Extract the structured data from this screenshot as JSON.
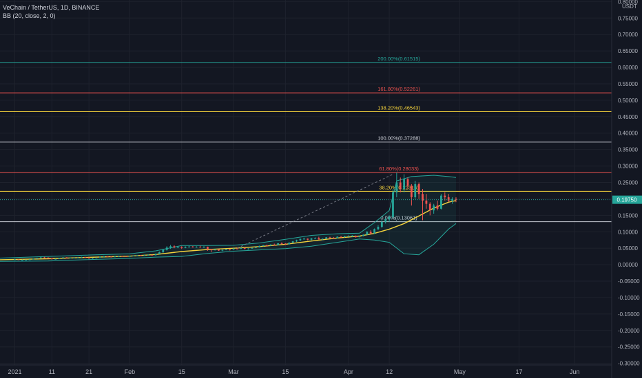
{
  "legend": {
    "symbol": "VeChain / TetherUS, 1D, BINANCE",
    "indicator": "BB (20, close, 2, 0)"
  },
  "colors": {
    "background": "#131722",
    "grid": "#1e222d",
    "up": "#26a69a",
    "down": "#ef5350",
    "basis": "#f5d33c",
    "band": "#26a69a"
  },
  "chart_data": {
    "type": "line",
    "axis_unit": "USDT",
    "ylim": [
      -0.305,
      0.805
    ],
    "y_ticks": [
      0.8,
      0.75,
      0.7,
      0.65,
      0.6,
      0.55,
      0.5,
      0.45,
      0.4,
      0.35,
      0.3,
      0.25,
      0.2,
      0.15,
      0.1,
      0.05,
      0.0,
      -0.05,
      -0.1,
      -0.15,
      -0.2,
      -0.25,
      -0.3
    ],
    "y_tick_labels": [
      "0.80000",
      "0.75000",
      "0.70000",
      "0.65000",
      "0.60000",
      "0.55000",
      "0.50000",
      "0.45000",
      "0.40000",
      "0.35000",
      "0.30000",
      "0.25000",
      "0.20000",
      "0.15000",
      "0.10000",
      "0.05000",
      "0.00000",
      "-0.05000",
      "-0.10000",
      "-0.15000",
      "-0.20000",
      "-0.25000",
      "-0.30000"
    ],
    "x_labels": [
      {
        "date": "2021-01-01",
        "label": "2021"
      },
      {
        "date": "2021-01-11",
        "label": "11"
      },
      {
        "date": "2021-01-21",
        "label": "21"
      },
      {
        "date": "2021-02-01",
        "label": "Feb"
      },
      {
        "date": "2021-02-15",
        "label": "15"
      },
      {
        "date": "2021-03-01",
        "label": "Mar"
      },
      {
        "date": "2021-03-15",
        "label": "15"
      },
      {
        "date": "2021-04-01",
        "label": "Apr"
      },
      {
        "date": "2021-04-12",
        "label": "12"
      },
      {
        "date": "2021-05-01",
        "label": "May"
      },
      {
        "date": "2021-05-17",
        "label": "17"
      },
      {
        "date": "2021-06-01",
        "label": "Jun"
      }
    ],
    "fib_levels": [
      {
        "level": "200.00%",
        "value": 0.61515,
        "label": "200.00%(0.61515)",
        "color": "#26a69a"
      },
      {
        "level": "161.80%",
        "value": 0.52261,
        "label": "161.80%(0.52261)",
        "color": "#ef5350"
      },
      {
        "level": "138.20%",
        "value": 0.46543,
        "label": "138.20%(0.46543)",
        "color": "#f5d33c"
      },
      {
        "level": "100.00%",
        "value": 0.37288,
        "label": "100.00%(0.37288)",
        "color": "#d1d4dc"
      },
      {
        "level": "61.80%",
        "value": 0.28033,
        "label": "61.80%(0.28033)",
        "color": "#ef5350"
      },
      {
        "level": "38.20%",
        "value": 0.22316,
        "label": "38.20%(0.22316)",
        "color": "#f5d33c"
      },
      {
        "level": "0.00%",
        "value": 0.13061,
        "label": "0.00%(0.13061)",
        "color": "#d1d4dc"
      }
    ],
    "trend_line": {
      "start": [
        "2021-03-02",
        0.05
      ],
      "end": [
        "2021-04-13",
        0.275
      ]
    },
    "last_price": {
      "value": 0.1975,
      "label": "0.19750"
    },
    "series": [
      {
        "name": "basis",
        "points": [
          [
            "2020-12-28",
            0.015
          ],
          [
            "2021-01-10",
            0.018
          ],
          [
            "2021-01-20",
            0.022
          ],
          [
            "2021-02-01",
            0.026
          ],
          [
            "2021-02-08",
            0.031
          ],
          [
            "2021-02-15",
            0.04
          ],
          [
            "2021-02-22",
            0.046
          ],
          [
            "2021-03-01",
            0.05
          ],
          [
            "2021-03-08",
            0.055
          ],
          [
            "2021-03-15",
            0.062
          ],
          [
            "2021-03-22",
            0.072
          ],
          [
            "2021-03-29",
            0.081
          ],
          [
            "2021-04-04",
            0.087
          ],
          [
            "2021-04-08",
            0.095
          ],
          [
            "2021-04-12",
            0.108
          ],
          [
            "2021-04-16",
            0.125
          ],
          [
            "2021-04-20",
            0.148
          ],
          [
            "2021-04-24",
            0.172
          ],
          [
            "2021-04-28",
            0.19
          ],
          [
            "2021-04-30",
            0.195
          ]
        ]
      },
      {
        "name": "upper",
        "points": [
          [
            "2020-12-28",
            0.02
          ],
          [
            "2021-01-10",
            0.025
          ],
          [
            "2021-01-20",
            0.029
          ],
          [
            "2021-02-01",
            0.033
          ],
          [
            "2021-02-08",
            0.042
          ],
          [
            "2021-02-15",
            0.058
          ],
          [
            "2021-02-22",
            0.058
          ],
          [
            "2021-03-01",
            0.059
          ],
          [
            "2021-03-08",
            0.066
          ],
          [
            "2021-03-15",
            0.077
          ],
          [
            "2021-03-22",
            0.089
          ],
          [
            "2021-03-29",
            0.094
          ],
          [
            "2021-04-04",
            0.096
          ],
          [
            "2021-04-08",
            0.128
          ],
          [
            "2021-04-12",
            0.165
          ],
          [
            "2021-04-14",
            0.255
          ],
          [
            "2021-04-18",
            0.268
          ],
          [
            "2021-04-24",
            0.272
          ],
          [
            "2021-04-28",
            0.268
          ],
          [
            "2021-04-30",
            0.265
          ]
        ]
      },
      {
        "name": "lower",
        "points": [
          [
            "2020-12-28",
            0.01
          ],
          [
            "2021-01-10",
            0.011
          ],
          [
            "2021-01-20",
            0.015
          ],
          [
            "2021-02-01",
            0.019
          ],
          [
            "2021-02-08",
            0.023
          ],
          [
            "2021-02-15",
            0.025
          ],
          [
            "2021-02-22",
            0.034
          ],
          [
            "2021-03-01",
            0.041
          ],
          [
            "2021-03-08",
            0.045
          ],
          [
            "2021-03-15",
            0.049
          ],
          [
            "2021-03-22",
            0.056
          ],
          [
            "2021-03-29",
            0.068
          ],
          [
            "2021-04-04",
            0.078
          ],
          [
            "2021-04-08",
            0.075
          ],
          [
            "2021-04-12",
            0.068
          ],
          [
            "2021-04-16",
            0.033
          ],
          [
            "2021-04-20",
            0.03
          ],
          [
            "2021-04-24",
            0.062
          ],
          [
            "2021-04-28",
            0.108
          ],
          [
            "2021-04-30",
            0.125
          ]
        ]
      }
    ],
    "candles": [
      [
        "2021-01-01",
        0.016,
        0.0175,
        0.014,
        0.016
      ],
      [
        "2021-01-02",
        0.016,
        0.016,
        0.014,
        0.0145
      ],
      [
        "2021-01-03",
        0.0145,
        0.016,
        0.013,
        0.0145
      ],
      [
        "2021-01-04",
        0.0145,
        0.016,
        0.014,
        0.015
      ],
      [
        "2021-01-05",
        0.015,
        0.0165,
        0.0145,
        0.016
      ],
      [
        "2021-01-06",
        0.016,
        0.0185,
        0.0155,
        0.018
      ],
      [
        "2021-01-07",
        0.018,
        0.021,
        0.0175,
        0.02
      ],
      [
        "2021-01-08",
        0.02,
        0.0235,
        0.018,
        0.022
      ],
      [
        "2021-01-09",
        0.022,
        0.024,
        0.02,
        0.0215
      ],
      [
        "2021-01-10",
        0.0215,
        0.0225,
        0.018,
        0.019
      ],
      [
        "2021-01-11",
        0.019,
        0.0195,
        0.015,
        0.017
      ],
      [
        "2021-01-12",
        0.017,
        0.0185,
        0.016,
        0.0175
      ],
      [
        "2021-01-13",
        0.0175,
        0.0205,
        0.017,
        0.02
      ],
      [
        "2021-01-14",
        0.02,
        0.023,
        0.0195,
        0.022
      ],
      [
        "2021-01-15",
        0.022,
        0.023,
        0.019,
        0.02
      ],
      [
        "2021-01-16",
        0.02,
        0.0215,
        0.0195,
        0.021
      ],
      [
        "2021-01-17",
        0.021,
        0.022,
        0.02,
        0.021
      ],
      [
        "2021-01-18",
        0.021,
        0.0225,
        0.02,
        0.0215
      ],
      [
        "2021-01-19",
        0.0215,
        0.024,
        0.021,
        0.023
      ],
      [
        "2021-01-20",
        0.023,
        0.0235,
        0.02,
        0.022
      ],
      [
        "2021-01-21",
        0.022,
        0.0225,
        0.018,
        0.019
      ],
      [
        "2021-01-22",
        0.019,
        0.0215,
        0.0175,
        0.021
      ],
      [
        "2021-01-23",
        0.021,
        0.0225,
        0.0205,
        0.0215
      ],
      [
        "2021-01-24",
        0.0215,
        0.0245,
        0.021,
        0.024
      ],
      [
        "2021-01-25",
        0.024,
        0.0265,
        0.023,
        0.025
      ],
      [
        "2021-01-26",
        0.025,
        0.026,
        0.0235,
        0.0245
      ],
      [
        "2021-01-27",
        0.0245,
        0.025,
        0.022,
        0.023
      ],
      [
        "2021-01-28",
        0.023,
        0.0255,
        0.0225,
        0.025
      ],
      [
        "2021-01-29",
        0.025,
        0.0275,
        0.024,
        0.026
      ],
      [
        "2021-01-30",
        0.026,
        0.027,
        0.0245,
        0.0255
      ],
      [
        "2021-01-31",
        0.0255,
        0.026,
        0.024,
        0.0245
      ],
      [
        "2021-02-01",
        0.0245,
        0.0265,
        0.024,
        0.026
      ],
      [
        "2021-02-02",
        0.026,
        0.028,
        0.0255,
        0.0275
      ],
      [
        "2021-02-03",
        0.0275,
        0.029,
        0.0265,
        0.0285
      ],
      [
        "2021-02-04",
        0.0285,
        0.0295,
        0.0265,
        0.0275
      ],
      [
        "2021-02-05",
        0.0275,
        0.03,
        0.027,
        0.029
      ],
      [
        "2021-02-06",
        0.029,
        0.031,
        0.028,
        0.03
      ],
      [
        "2021-02-07",
        0.03,
        0.0305,
        0.027,
        0.0285
      ],
      [
        "2021-02-08",
        0.0285,
        0.034,
        0.028,
        0.033
      ],
      [
        "2021-02-09",
        0.033,
        0.04,
        0.032,
        0.038
      ],
      [
        "2021-02-10",
        0.038,
        0.048,
        0.036,
        0.045
      ],
      [
        "2021-02-11",
        0.045,
        0.056,
        0.043,
        0.052
      ],
      [
        "2021-02-12",
        0.052,
        0.06,
        0.048,
        0.056
      ],
      [
        "2021-02-13",
        0.056,
        0.059,
        0.05,
        0.053
      ],
      [
        "2021-02-14",
        0.053,
        0.057,
        0.05,
        0.054
      ],
      [
        "2021-02-15",
        0.054,
        0.056,
        0.048,
        0.051
      ],
      [
        "2021-02-16",
        0.051,
        0.056,
        0.05,
        0.054
      ],
      [
        "2021-02-17",
        0.054,
        0.057,
        0.052,
        0.055
      ],
      [
        "2021-02-18",
        0.055,
        0.0565,
        0.052,
        0.053
      ],
      [
        "2021-02-19",
        0.053,
        0.056,
        0.0515,
        0.0545
      ],
      [
        "2021-02-20",
        0.0545,
        0.0575,
        0.052,
        0.053
      ],
      [
        "2021-02-21",
        0.053,
        0.056,
        0.051,
        0.0545
      ],
      [
        "2021-02-22",
        0.0545,
        0.055,
        0.042,
        0.047
      ],
      [
        "2021-02-23",
        0.047,
        0.048,
        0.038,
        0.044
      ],
      [
        "2021-02-24",
        0.044,
        0.048,
        0.043,
        0.046
      ],
      [
        "2021-02-25",
        0.046,
        0.0475,
        0.042,
        0.043
      ],
      [
        "2021-02-26",
        0.043,
        0.046,
        0.041,
        0.045
      ],
      [
        "2021-02-27",
        0.045,
        0.048,
        0.044,
        0.047
      ],
      [
        "2021-02-28",
        0.047,
        0.048,
        0.043,
        0.046
      ],
      [
        "2021-03-01",
        0.046,
        0.05,
        0.045,
        0.049
      ],
      [
        "2021-03-02",
        0.049,
        0.051,
        0.047,
        0.048
      ],
      [
        "2021-03-03",
        0.048,
        0.052,
        0.0475,
        0.051
      ],
      [
        "2021-03-04",
        0.051,
        0.052,
        0.047,
        0.048
      ],
      [
        "2021-03-05",
        0.048,
        0.05,
        0.046,
        0.049
      ],
      [
        "2021-03-06",
        0.049,
        0.052,
        0.0485,
        0.051
      ],
      [
        "2021-03-07",
        0.051,
        0.054,
        0.05,
        0.053
      ],
      [
        "2021-03-08",
        0.053,
        0.058,
        0.052,
        0.057
      ],
      [
        "2021-03-09",
        0.057,
        0.06,
        0.055,
        0.059
      ],
      [
        "2021-03-10",
        0.059,
        0.061,
        0.056,
        0.058
      ],
      [
        "2021-03-11",
        0.058,
        0.062,
        0.057,
        0.061
      ],
      [
        "2021-03-12",
        0.061,
        0.064,
        0.058,
        0.06
      ],
      [
        "2021-03-13",
        0.06,
        0.066,
        0.059,
        0.065
      ],
      [
        "2021-03-14",
        0.065,
        0.068,
        0.062,
        0.064
      ],
      [
        "2021-03-15",
        0.064,
        0.065,
        0.06,
        0.062
      ],
      [
        "2021-03-16",
        0.062,
        0.068,
        0.061,
        0.067
      ],
      [
        "2021-03-17",
        0.067,
        0.072,
        0.066,
        0.071
      ],
      [
        "2021-03-18",
        0.071,
        0.076,
        0.069,
        0.074
      ],
      [
        "2021-03-19",
        0.074,
        0.08,
        0.072,
        0.078
      ],
      [
        "2021-03-20",
        0.078,
        0.082,
        0.076,
        0.079
      ],
      [
        "2021-03-21",
        0.079,
        0.08,
        0.074,
        0.076
      ],
      [
        "2021-03-22",
        0.076,
        0.081,
        0.074,
        0.08
      ],
      [
        "2021-03-23",
        0.08,
        0.083,
        0.078,
        0.081
      ],
      [
        "2021-03-24",
        0.081,
        0.085,
        0.076,
        0.077
      ],
      [
        "2021-03-25",
        0.077,
        0.08,
        0.074,
        0.079
      ],
      [
        "2021-03-26",
        0.079,
        0.084,
        0.078,
        0.083
      ],
      [
        "2021-03-27",
        0.083,
        0.085,
        0.08,
        0.082
      ],
      [
        "2021-03-28",
        0.082,
        0.084,
        0.079,
        0.081
      ],
      [
        "2021-03-29",
        0.081,
        0.086,
        0.08,
        0.085
      ],
      [
        "2021-03-30",
        0.085,
        0.087,
        0.082,
        0.084
      ],
      [
        "2021-03-31",
        0.084,
        0.088,
        0.082,
        0.086
      ],
      [
        "2021-04-01",
        0.086,
        0.089,
        0.084,
        0.087
      ],
      [
        "2021-04-02",
        0.087,
        0.09,
        0.084,
        0.088
      ],
      [
        "2021-04-03",
        0.088,
        0.089,
        0.082,
        0.084
      ],
      [
        "2021-04-04",
        0.084,
        0.088,
        0.083,
        0.087
      ],
      [
        "2021-04-05",
        0.087,
        0.092,
        0.086,
        0.091
      ],
      [
        "2021-04-06",
        0.091,
        0.102,
        0.09,
        0.1
      ],
      [
        "2021-04-07",
        0.1,
        0.105,
        0.092,
        0.095
      ],
      [
        "2021-04-08",
        0.095,
        0.11,
        0.094,
        0.108
      ],
      [
        "2021-04-09",
        0.108,
        0.12,
        0.105,
        0.115
      ],
      [
        "2021-04-10",
        0.115,
        0.135,
        0.112,
        0.13
      ],
      [
        "2021-04-11",
        0.13,
        0.142,
        0.125,
        0.138
      ],
      [
        "2021-04-12",
        0.138,
        0.15,
        0.13,
        0.145
      ],
      [
        "2021-04-13",
        0.145,
        0.23,
        0.14,
        0.22
      ],
      [
        "2021-04-14",
        0.22,
        0.28,
        0.205,
        0.25
      ],
      [
        "2021-04-15",
        0.25,
        0.265,
        0.22,
        0.23
      ],
      [
        "2021-04-16",
        0.23,
        0.275,
        0.22,
        0.26
      ],
      [
        "2021-04-17",
        0.26,
        0.265,
        0.23,
        0.24
      ],
      [
        "2021-04-18",
        0.24,
        0.245,
        0.18,
        0.205
      ],
      [
        "2021-04-19",
        0.205,
        0.255,
        0.2,
        0.245
      ],
      [
        "2021-04-20",
        0.245,
        0.25,
        0.2,
        0.215
      ],
      [
        "2021-04-21",
        0.215,
        0.23,
        0.135,
        0.195
      ],
      [
        "2021-04-22",
        0.195,
        0.215,
        0.17,
        0.185
      ],
      [
        "2021-04-23",
        0.185,
        0.19,
        0.15,
        0.165
      ],
      [
        "2021-04-24",
        0.165,
        0.185,
        0.155,
        0.18
      ],
      [
        "2021-04-25",
        0.18,
        0.195,
        0.165,
        0.17
      ],
      [
        "2021-04-26",
        0.17,
        0.215,
        0.168,
        0.21
      ],
      [
        "2021-04-27",
        0.21,
        0.22,
        0.195,
        0.205
      ],
      [
        "2021-04-28",
        0.205,
        0.215,
        0.19,
        0.195
      ],
      [
        "2021-04-29",
        0.195,
        0.205,
        0.185,
        0.2
      ],
      [
        "2021-04-30",
        0.2,
        0.205,
        0.19,
        0.1975
      ]
    ]
  }
}
